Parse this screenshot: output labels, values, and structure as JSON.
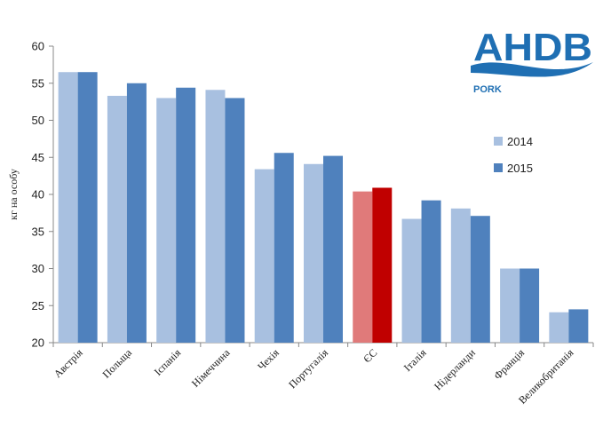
{
  "logo": {
    "name": "AHDB",
    "sub": "PORK",
    "color": "#1f6fb3"
  },
  "chart_data": {
    "type": "bar",
    "ylabel": "кг на особу",
    "xlabel": "",
    "ylim": [
      20,
      60
    ],
    "yticks": [
      20,
      25,
      30,
      35,
      40,
      45,
      50,
      55,
      60
    ],
    "grid": false,
    "legend_position": "right",
    "categories": [
      "Австрія",
      "Польща",
      "Іспанія",
      "Німеччина",
      "Чехія",
      "Португалія",
      "ЄС",
      "Італія",
      "Нідерланди",
      "Франція",
      "Великобританія"
    ],
    "series": [
      {
        "name": "2014",
        "color": "#a8c0e0",
        "values": [
          56.5,
          53.3,
          53.0,
          54.1,
          43.4,
          44.1,
          40.4,
          36.7,
          38.1,
          30.0,
          24.1
        ]
      },
      {
        "name": "2015",
        "color": "#4f81bd",
        "values": [
          56.5,
          55.0,
          54.4,
          53.0,
          45.6,
          45.2,
          40.9,
          39.2,
          37.1,
          30.0,
          24.5
        ]
      }
    ],
    "highlight": {
      "category": "ЄС",
      "colors": [
        "#e07a7a",
        "#c00000"
      ]
    }
  }
}
